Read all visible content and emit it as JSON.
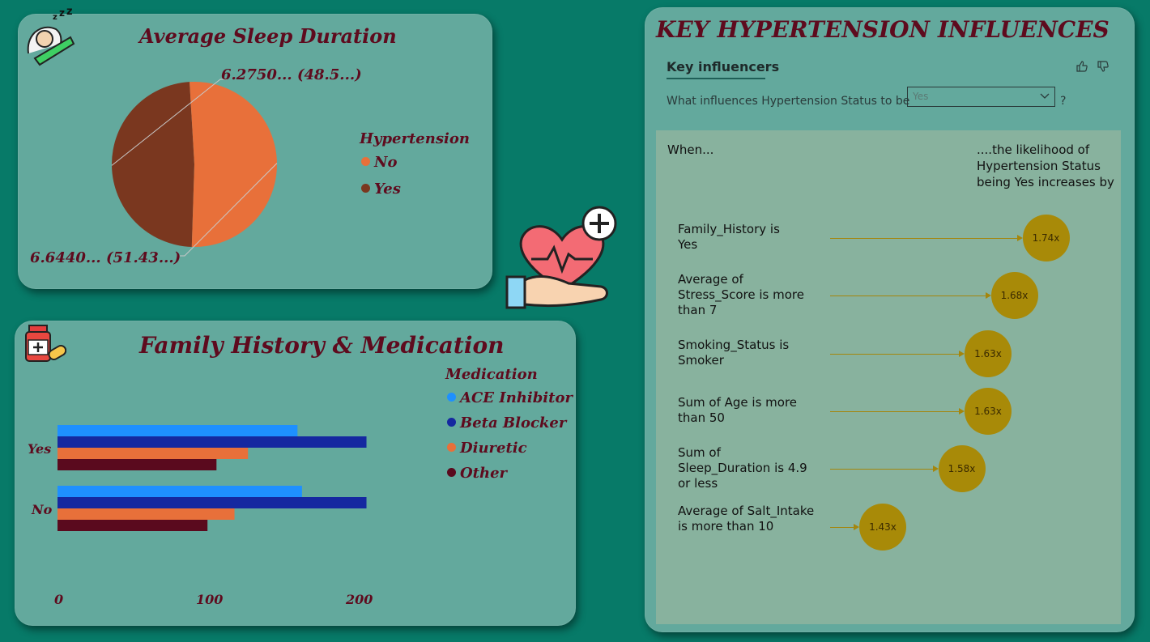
{
  "sleep_card": {
    "title": "Average Sleep Duration",
    "legend_title": "Hypertension",
    "legend": [
      {
        "label": "No",
        "color": "#e8703a"
      },
      {
        "label": "Yes",
        "color": "#7a371f"
      }
    ],
    "slice_labels": [
      "6.2750... (48.5...)",
      "6.6440... (51.43...)"
    ]
  },
  "family_card": {
    "title": "Family History & Medication",
    "legend_title": "Medication",
    "legend": [
      {
        "label": "ACE Inhibitor",
        "color": "#1e90ff"
      },
      {
        "label": "Beta Blocker",
        "color": "#1528a0"
      },
      {
        "label": "Diuretic",
        "color": "#e8703a"
      },
      {
        "label": "Other",
        "color": "#5a0a1e"
      }
    ],
    "categories": [
      "Yes",
      "No"
    ],
    "ticks": [
      "0",
      "100",
      "200"
    ]
  },
  "ki_card": {
    "title": "KEY HYPERTENSION INFLUENCES",
    "tab": "Key influencers",
    "question_prefix": "What influences Hypertension Status to be",
    "question_value": "Yes",
    "question_suffix": "?",
    "when_label": "When...",
    "likelihood_label": "....the likelihood of Hypertension Status being Yes increases by",
    "influencers": [
      {
        "label": "Family_History is Yes",
        "value": "1.74x"
      },
      {
        "label": "Average of Stress_Score is more than 7",
        "value": "1.68x"
      },
      {
        "label": "Smoking_Status is Smoker",
        "value": "1.63x"
      },
      {
        "label": "Sum of Age is more than 50",
        "value": "1.63x"
      },
      {
        "label": "Sum of Sleep_Duration is 4.9 or less",
        "value": "1.58x"
      },
      {
        "label": "Average of Salt_Intake is more than 10",
        "value": "1.43x"
      }
    ]
  },
  "chart_data": [
    {
      "type": "pie",
      "title": "Average Sleep Duration",
      "legend_title": "Hypertension",
      "categories": [
        "Yes",
        "No"
      ],
      "values": [
        6.275,
        6.644
      ],
      "percent": [
        48.57,
        51.43
      ],
      "colors": [
        "#7a371f",
        "#e8703a"
      ]
    },
    {
      "type": "bar",
      "orientation": "horizontal",
      "title": "Family History & Medication",
      "legend_title": "Medication",
      "categories": [
        "Yes",
        "No"
      ],
      "series": [
        {
          "name": "ACE Inhibitor",
          "values": [
            160,
            163
          ],
          "color": "#1e90ff"
        },
        {
          "name": "Beta Blocker",
          "values": [
            206,
            206
          ],
          "color": "#1528a0"
        },
        {
          "name": "Diuretic",
          "values": [
            127,
            118
          ],
          "color": "#e8703a"
        },
        {
          "name": "Other",
          "values": [
            106,
            100
          ],
          "color": "#5a0a1e"
        }
      ],
      "xlim": [
        0,
        210
      ],
      "xticks": [
        0,
        100,
        200
      ]
    },
    {
      "type": "scatter",
      "title": "Key influencers",
      "categories": [
        "Family_History is Yes",
        "Average of Stress_Score is more than 7",
        "Smoking_Status is Smoker",
        "Sum of Age is more than 50",
        "Sum of Sleep_Duration is 4.9 or less",
        "Average of Salt_Intake is more than 10"
      ],
      "values": [
        1.74,
        1.68,
        1.63,
        1.63,
        1.58,
        1.43
      ]
    }
  ]
}
